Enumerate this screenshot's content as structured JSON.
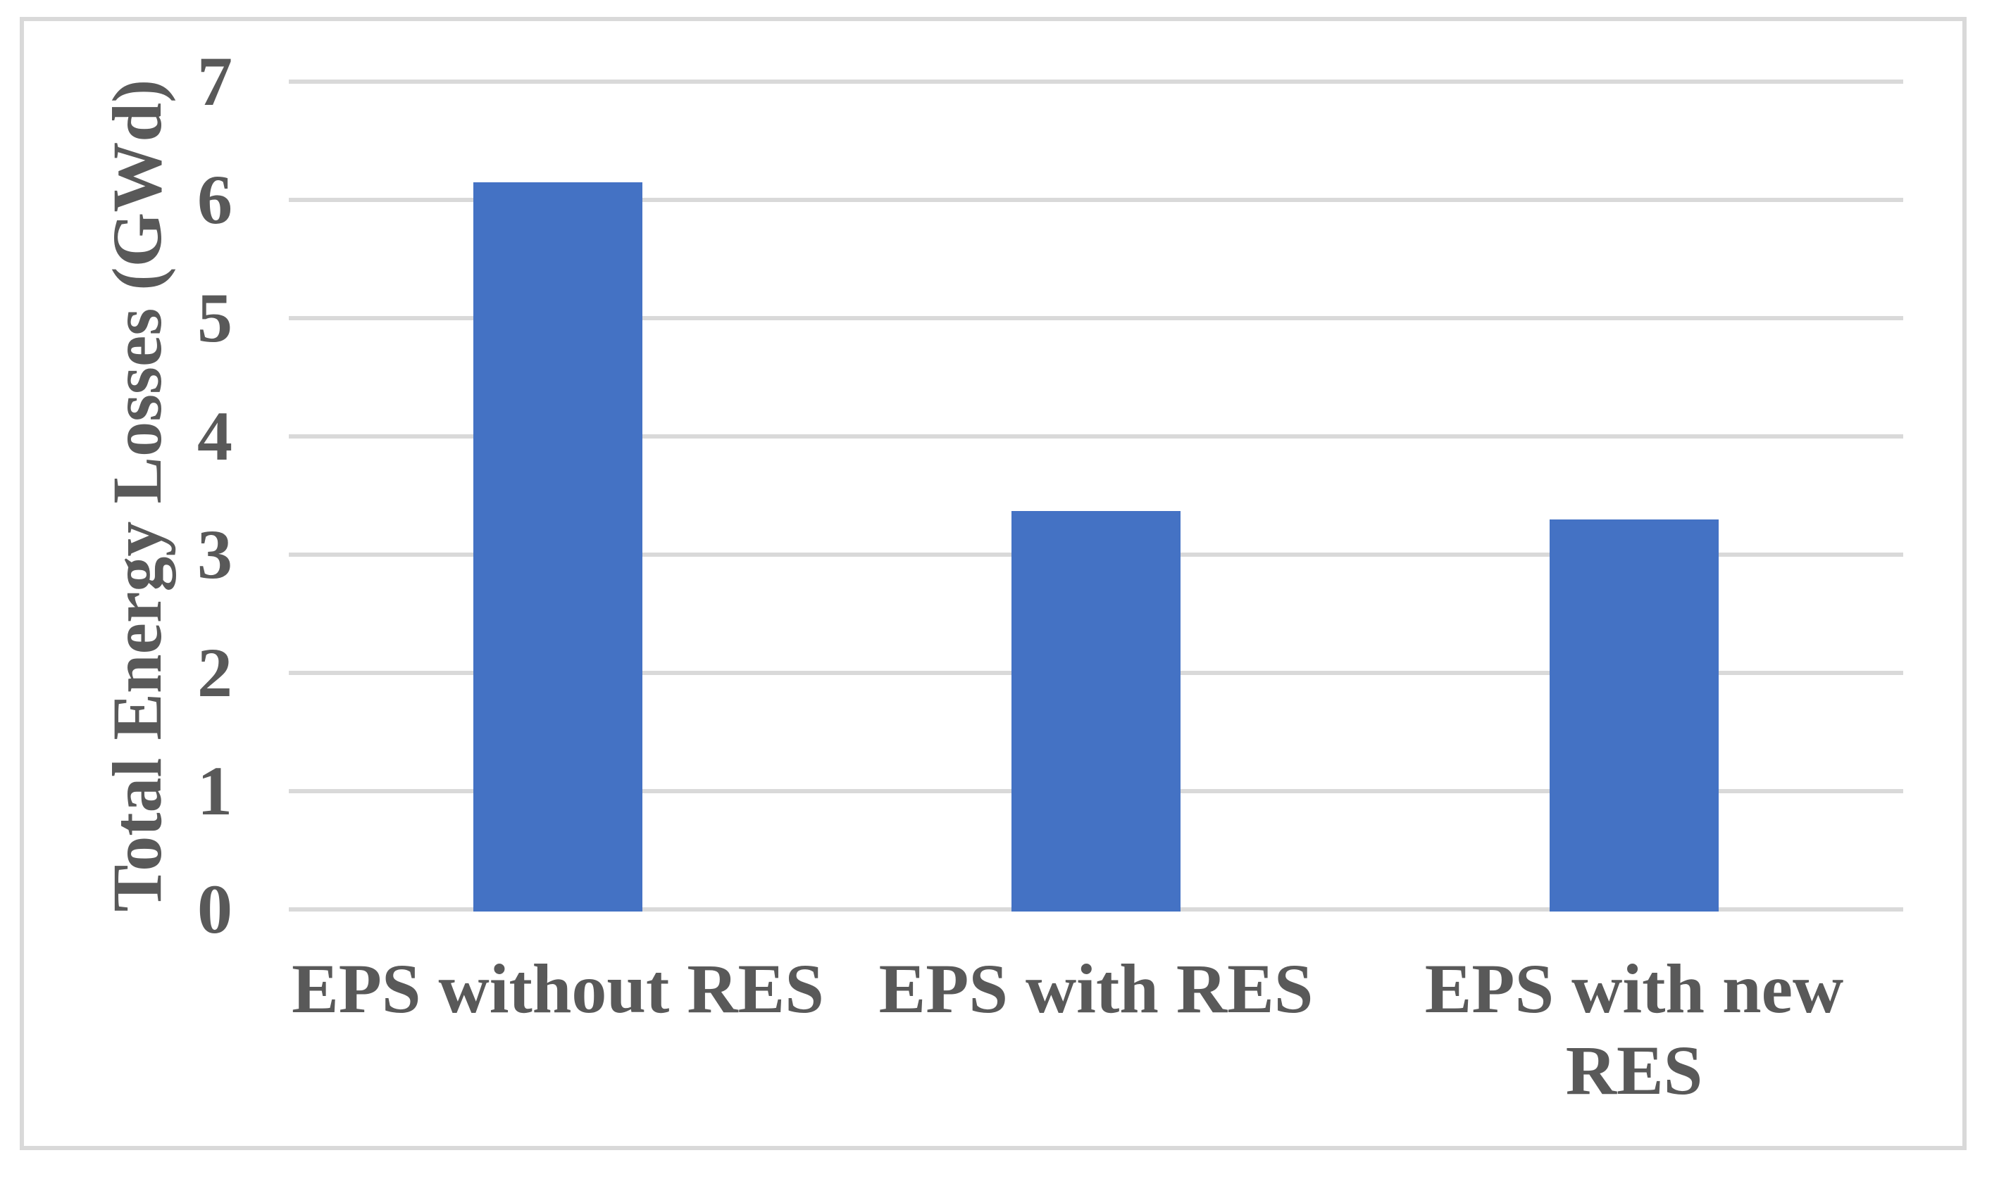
{
  "figure": {
    "background_color": "#FFFFFF",
    "border_color": "#D9D9D9",
    "text_color": "#595959",
    "gridline_color": "#D9D9D9"
  },
  "chart_data": {
    "type": "bar",
    "title": "",
    "xlabel": "",
    "ylabel": "Total Energy Losses (GWd)",
    "categories": [
      "EPS without RES",
      "EPS with RES",
      "EPS with new RES"
    ],
    "category_display": [
      "EPS without RES",
      "EPS with RES",
      "EPS with new\nRES"
    ],
    "values": [
      6.15,
      3.37,
      3.3
    ],
    "bar_color": "#4472C4",
    "ylim": [
      0,
      7
    ],
    "yticks": [
      0,
      1,
      2,
      3,
      4,
      5,
      6,
      7
    ],
    "grid": "horizontal-on",
    "legend": "none"
  }
}
